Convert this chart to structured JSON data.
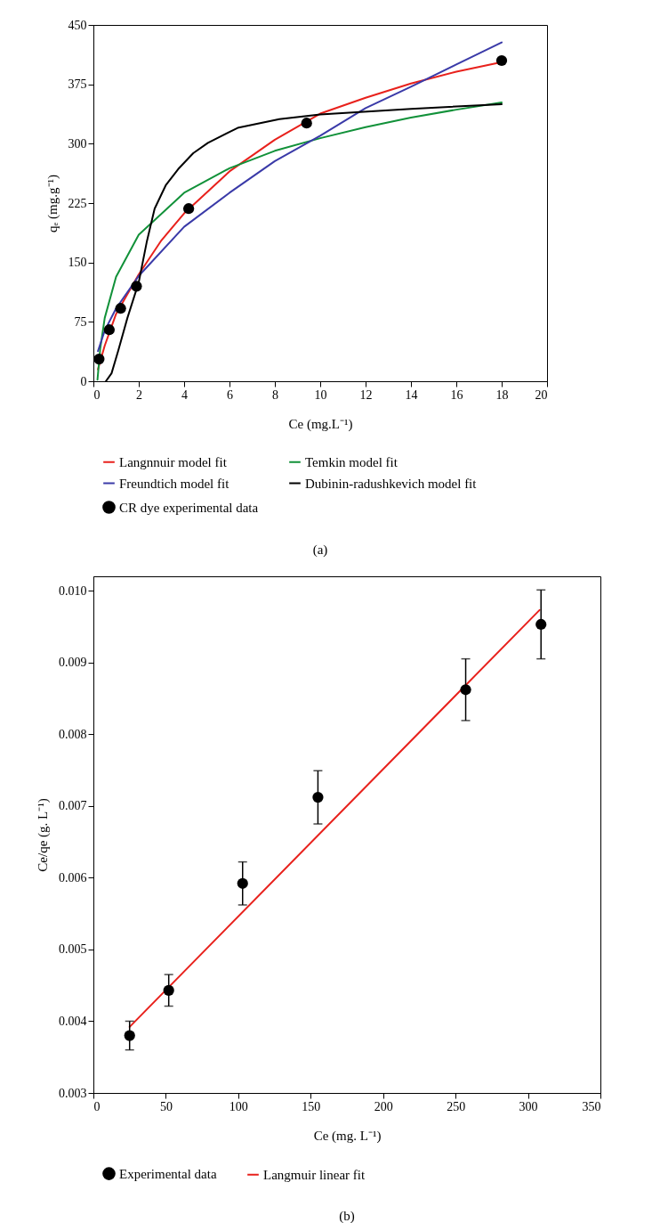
{
  "chart_data": [
    {
      "type": "line",
      "xlabel": "Ce (mg.L⁻¹)",
      "ylabel": "qₑ (mg.g⁻¹)",
      "xlim": [
        0,
        20
      ],
      "ylim": [
        0,
        450
      ],
      "xticks": [
        0,
        2,
        4,
        6,
        8,
        10,
        12,
        14,
        16,
        18,
        20
      ],
      "yticks": [
        0,
        75,
        150,
        225,
        300,
        375,
        450
      ],
      "legend": "bottom",
      "annotations": [
        "(a)"
      ],
      "series": [
        {
          "name": "Langnnuir model fit",
          "color": "#e8211c",
          "x": [
            0.2,
            0.5,
            1,
            2,
            3,
            4,
            6,
            8,
            10,
            12,
            14,
            16,
            18
          ],
          "values": [
            15,
            45,
            85,
            135,
            178,
            212,
            265,
            305,
            338,
            358,
            376,
            391,
            403
          ]
        },
        {
          "name": "Temkin model fit",
          "color": "#119139",
          "x": [
            0.18,
            0.3,
            0.5,
            1,
            2,
            4,
            6,
            8,
            10,
            12,
            14,
            16,
            18
          ],
          "values": [
            2,
            41,
            80,
            132,
            185,
            238,
            269,
            291,
            307,
            321,
            333,
            343,
            352
          ]
        },
        {
          "name": "Freundtich model fit",
          "color": "#3a3aa8",
          "x": [
            0.2,
            0.5,
            1,
            2,
            4,
            6,
            8,
            10,
            12,
            14,
            16,
            18
          ],
          "values": [
            38,
            64,
            92,
            133,
            195,
            238,
            278,
            310,
            345,
            372,
            400,
            428
          ]
        },
        {
          "name": "Dubinin-radushkevich model fit",
          "color": "#000000",
          "x": [
            0.55,
            0.8,
            1.1,
            1.5,
            2,
            2.36,
            2.7,
            3.2,
            3.74,
            4.4,
            5.05,
            6.36,
            8.2,
            10,
            14,
            18
          ],
          "values": [
            0,
            10,
            39,
            80,
            125,
            177,
            218,
            248,
            268,
            288,
            301,
            320,
            331,
            337,
            344,
            350
          ]
        },
        {
          "name": "CR dye experimental data",
          "type": "scatter",
          "color": "#000000",
          "marker": "circle",
          "x": [
            0.25,
            0.7,
            1.2,
            1.9,
            4.2,
            9.4,
            18
          ],
          "values": [
            28,
            65,
            92,
            120,
            218,
            326,
            405
          ]
        }
      ]
    },
    {
      "type": "scatter",
      "xlabel": "Ce (mg. L⁻¹)",
      "ylabel": "Ce/qe (g. L⁻¹)",
      "xlim": [
        0,
        350
      ],
      "ylim": [
        0.003,
        0.0102
      ],
      "xticks": [
        0,
        50,
        100,
        150,
        200,
        250,
        300,
        350
      ],
      "yticks": [
        0.003,
        0.004,
        0.005,
        0.006,
        0.007,
        0.008,
        0.009,
        {
          "value": 0.01,
          "label": "0.010"
        }
      ],
      "legend": "bottom",
      "annotations": [
        "(b)"
      ],
      "series": [
        {
          "name": "Experimental data",
          "color": "#000000",
          "marker": "circle",
          "x": [
            25,
            52,
            103,
            155,
            257,
            309
          ],
          "values": [
            0.0038,
            0.00443,
            0.00592,
            0.00712,
            0.00862,
            0.00953
          ],
          "errors": [
            0.0002,
            0.00022,
            0.0003,
            0.00037,
            0.00043,
            0.00048
          ]
        },
        {
          "name": "Langmuir linear fit",
          "type": "line",
          "color": "#e8211c",
          "x": [
            25,
            308
          ],
          "values": [
            0.00392,
            0.00973
          ]
        }
      ]
    }
  ]
}
